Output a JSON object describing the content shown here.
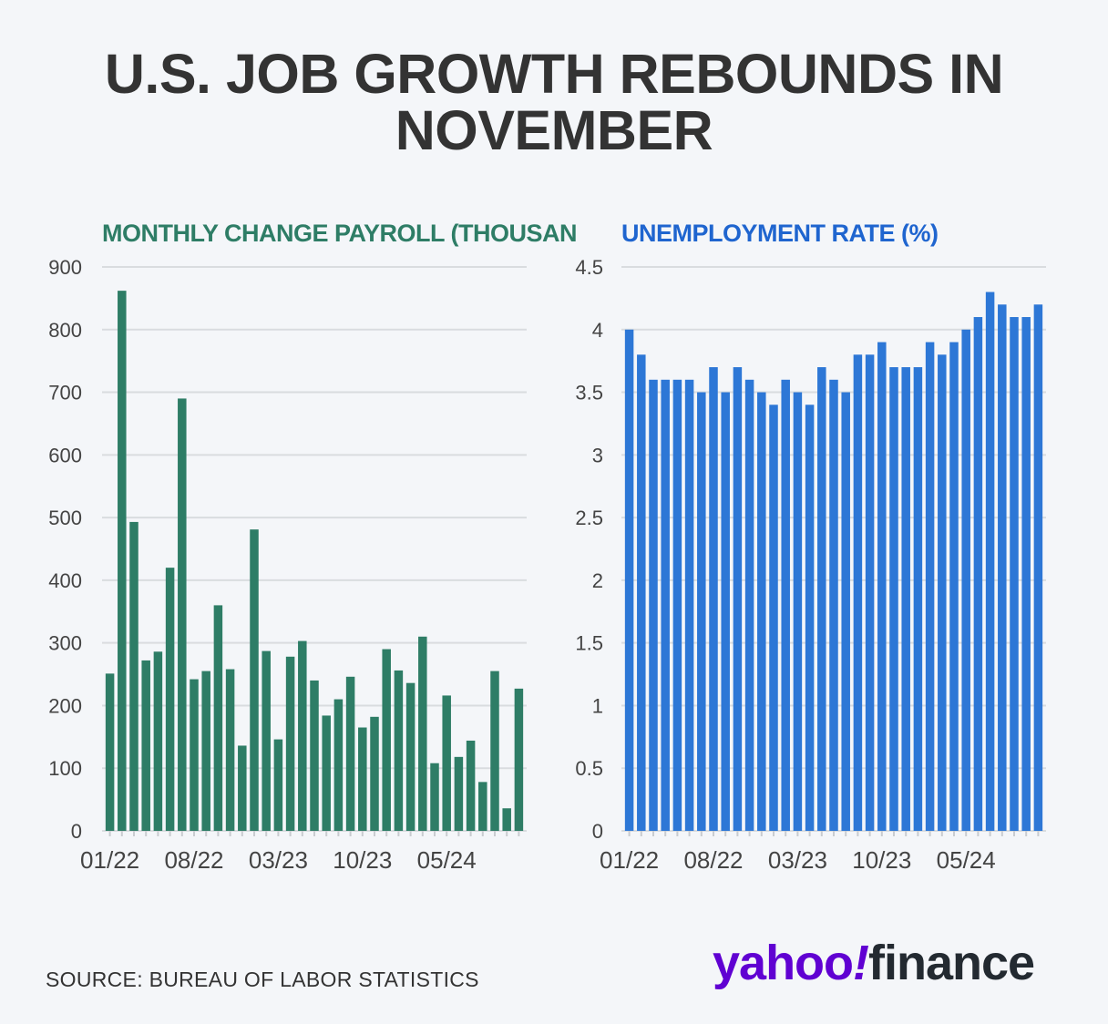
{
  "title": "U.S. JOB GROWTH REBOUNDS IN NOVEMBER",
  "source": "SOURCE: BUREAU OF LABOR STATISTICS",
  "logo": {
    "yahoo": "yahoo",
    "bang": "!",
    "finance": "finance"
  },
  "colors": {
    "payroll": "#2e7d66",
    "rate": "#2d77d6",
    "payroll_title": "#2e7d66",
    "rate_title": "#1f65cf"
  },
  "chart_data": [
    {
      "type": "bar",
      "title": "MONTHLY CHANGE PAYROLL (THOUSANDS)",
      "ylim": [
        0,
        900
      ],
      "yticks": [
        0,
        100,
        200,
        300,
        400,
        500,
        600,
        700,
        800,
        900
      ],
      "ytick_labels": [
        "0",
        "100",
        "200",
        "300",
        "400",
        "500",
        "600",
        "700",
        "800",
        "900"
      ],
      "xtick_labels": [
        "01/22",
        "08/22",
        "03/23",
        "10/23",
        "05/24"
      ],
      "categories": [
        "01/22",
        "02/22",
        "03/22",
        "04/22",
        "05/22",
        "06/22",
        "07/22",
        "08/22",
        "09/22",
        "10/22",
        "11/22",
        "12/22",
        "01/23",
        "02/23",
        "03/23",
        "04/23",
        "05/23",
        "06/23",
        "07/23",
        "08/23",
        "09/23",
        "10/23",
        "11/23",
        "12/23",
        "01/24",
        "02/24",
        "03/24",
        "04/24",
        "05/24",
        "06/24",
        "07/24",
        "08/24",
        "09/24",
        "10/24",
        "11/24"
      ],
      "values": [
        251,
        862,
        493,
        272,
        286,
        420,
        690,
        242,
        255,
        360,
        258,
        136,
        481,
        287,
        146,
        278,
        303,
        240,
        184,
        210,
        246,
        165,
        182,
        290,
        256,
        236,
        310,
        108,
        216,
        118,
        144,
        78,
        255,
        36,
        227
      ]
    },
    {
      "type": "bar",
      "title": "UNEMPLOYMENT RATE (%)",
      "ylim": [
        0,
        4.5
      ],
      "yticks": [
        0,
        0.5,
        1,
        1.5,
        2,
        2.5,
        3,
        3.5,
        4,
        4.5
      ],
      "ytick_labels": [
        "0",
        "0.5",
        "1",
        "1.5",
        "2",
        "2.5",
        "3",
        "3.5",
        "4",
        "4.5"
      ],
      "xtick_labels": [
        "01/22",
        "08/22",
        "03/23",
        "10/23",
        "05/24"
      ],
      "categories": [
        "01/22",
        "02/22",
        "03/22",
        "04/22",
        "05/22",
        "06/22",
        "07/22",
        "08/22",
        "09/22",
        "10/22",
        "11/22",
        "12/22",
        "01/23",
        "02/23",
        "03/23",
        "04/23",
        "05/23",
        "06/23",
        "07/23",
        "08/23",
        "09/23",
        "10/23",
        "11/23",
        "12/23",
        "01/24",
        "02/24",
        "03/24",
        "04/24",
        "05/24",
        "06/24",
        "07/24",
        "08/24",
        "09/24",
        "10/24",
        "11/24"
      ],
      "values": [
        4.0,
        3.8,
        3.6,
        3.6,
        3.6,
        3.6,
        3.5,
        3.7,
        3.5,
        3.7,
        3.6,
        3.5,
        3.4,
        3.6,
        3.5,
        3.4,
        3.7,
        3.6,
        3.5,
        3.8,
        3.8,
        3.9,
        3.7,
        3.7,
        3.7,
        3.9,
        3.8,
        3.9,
        4.0,
        4.1,
        4.3,
        4.2,
        4.1,
        4.1,
        4.2
      ]
    }
  ]
}
